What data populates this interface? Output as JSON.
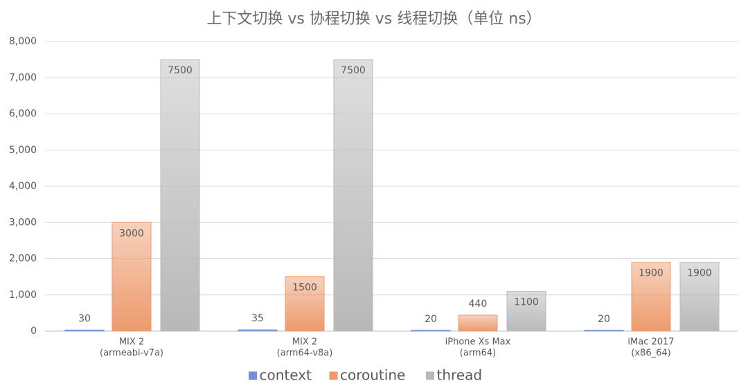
{
  "chart_data": {
    "type": "bar",
    "title": "上下文切换 vs 协程切换 vs 线程切换（单位 ns）",
    "categories": [
      [
        "MIX 2",
        "(armeabi-v7a)"
      ],
      [
        "MIX 2",
        "(arm64-v8a)"
      ],
      [
        "iPhone Xs Max",
        "(arm64)"
      ],
      [
        "iMac 2017",
        "(x86_64)"
      ]
    ],
    "series": [
      {
        "name": "context",
        "color": "#6f8fd6",
        "values": [
          30,
          35,
          20,
          20
        ]
      },
      {
        "name": "coroutine",
        "color": "#ed9a6c",
        "values": [
          3000,
          1500,
          440,
          1900
        ]
      },
      {
        "name": "thread",
        "color": "#b8b8b8",
        "values": [
          7500,
          7500,
          1100,
          1900
        ]
      }
    ],
    "ylim": [
      0,
      8000
    ],
    "yticks": [
      0,
      {
        "value": 1000,
        "label": "1,000"
      },
      {
        "value": 2000,
        "label": "2,000"
      },
      {
        "value": 3000,
        "label": "3,000"
      },
      {
        "value": 4000,
        "label": "4,000"
      },
      {
        "value": 5000,
        "label": "5,000"
      },
      {
        "value": 6000,
        "label": "6,000"
      },
      {
        "value": 7000,
        "label": "7,000"
      },
      {
        "value": 8000,
        "label": "8,000"
      }
    ],
    "grid": true
  }
}
